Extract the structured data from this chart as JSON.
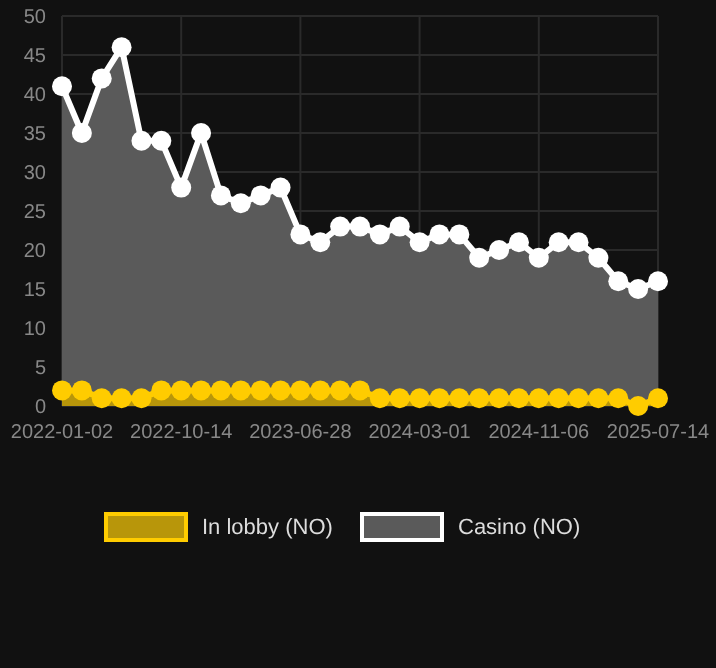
{
  "chart_data": {
    "type": "area",
    "categories": [
      "2022-01-02",
      null,
      null,
      null,
      null,
      null,
      "2022-10-14",
      null,
      null,
      null,
      null,
      null,
      "2023-06-28",
      null,
      null,
      null,
      null,
      null,
      "2024-03-01",
      null,
      null,
      null,
      null,
      null,
      "2024-11-06",
      null,
      null,
      null,
      null,
      null,
      "2025-07-14"
    ],
    "series": [
      {
        "name": "In lobby (NO)",
        "color": "#ffcc00",
        "values": [
          2,
          2,
          1,
          1,
          1,
          2,
          2,
          2,
          2,
          2,
          2,
          2,
          2,
          2,
          2,
          2,
          1,
          1,
          1,
          1,
          1,
          1,
          1,
          1,
          1,
          1,
          1,
          1,
          1,
          0,
          1
        ]
      },
      {
        "name": "Casino (NO)",
        "color": "#ffffff",
        "values": [
          41,
          35,
          42,
          46,
          34,
          34,
          28,
          35,
          27,
          26,
          27,
          28,
          22,
          21,
          23,
          23,
          22,
          23,
          21,
          22,
          22,
          19,
          20,
          21,
          19,
          21,
          21,
          19,
          16,
          15,
          16
        ]
      }
    ],
    "ylim": [
      0,
      50
    ],
    "yticks": [
      0,
      5,
      10,
      15,
      20,
      25,
      30,
      35,
      40,
      45,
      50
    ],
    "grid": true,
    "legend": "bottom",
    "marker": "circle"
  }
}
